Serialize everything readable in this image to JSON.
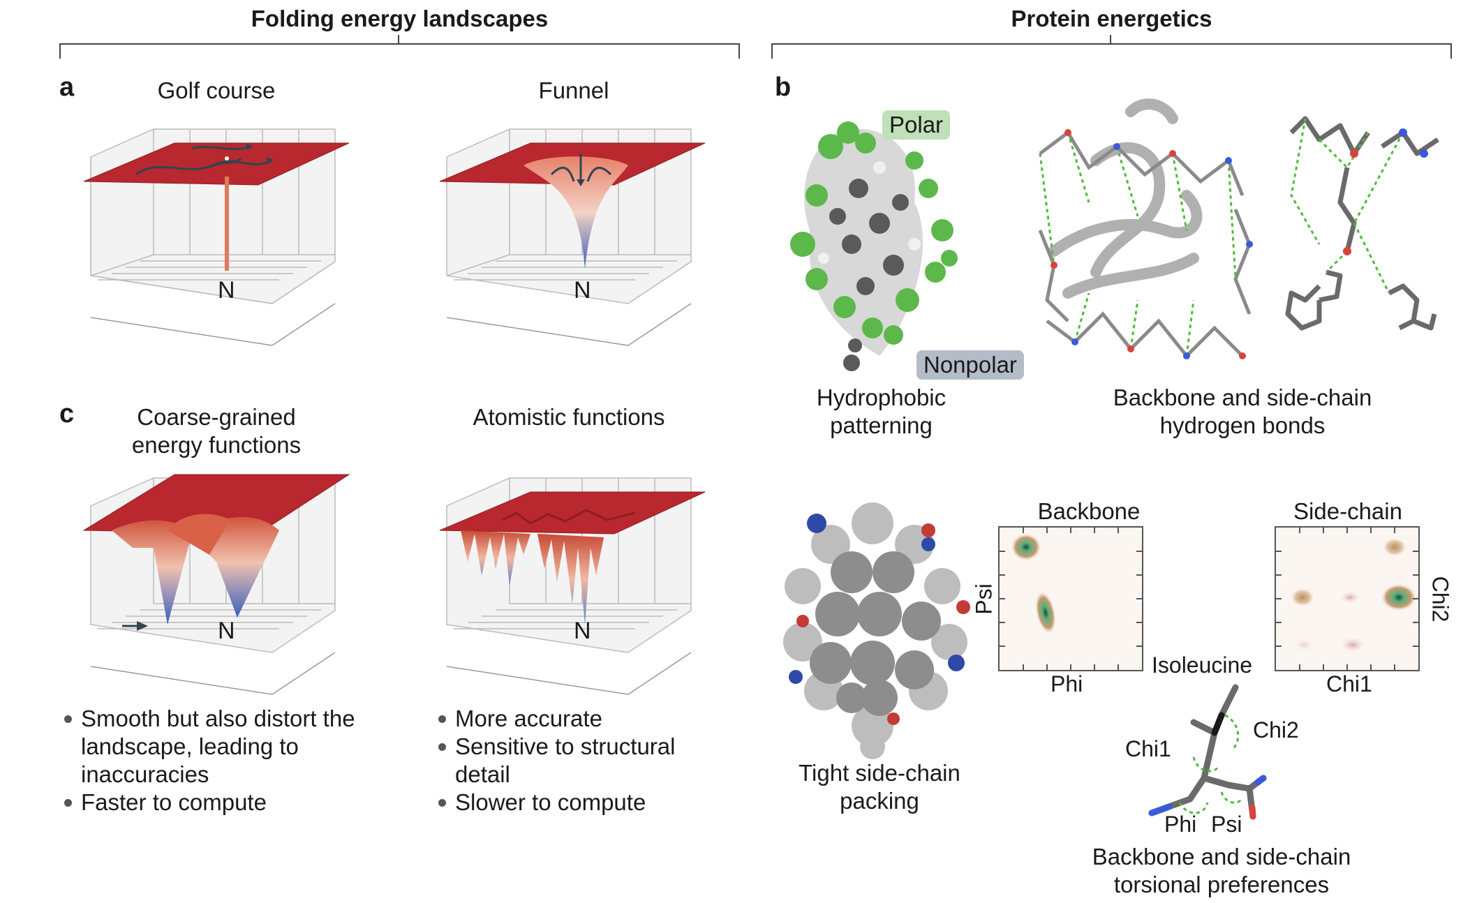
{
  "headers": {
    "left": "Folding energy landscapes",
    "right": "Protein energetics"
  },
  "panel_a": {
    "letter": "a",
    "golf_title": "Golf course",
    "funnel_title": "Funnel",
    "native_label": "N"
  },
  "panel_c": {
    "letter": "c",
    "coarse_title": "Coarse-grained energy functions",
    "atomistic_title": "Atomistic functions",
    "native_label": "N",
    "coarse_bullets": [
      "Smooth but also distort the landscape, leading to inaccuracies",
      "Faster to compute"
    ],
    "atomistic_bullets": [
      "More accurate",
      "Sensitive to structural detail",
      "Slower to compute"
    ]
  },
  "panel_b": {
    "letter": "b",
    "polar_tag": "Polar",
    "nonpolar_tag": "Nonpolar",
    "hydrophobic_caption": "Hydrophobic patterning",
    "hbond_caption": "Backbone and side-chain hydrogen bonds",
    "packing_caption": "Tight side-chain packing",
    "torsion_caption": "Backbone and side-chain torsional preferences",
    "backbone_plot": {
      "title": "Backbone",
      "xlabel": "Phi",
      "ylabel": "Psi"
    },
    "sidechain_plot": {
      "title": "Side-chain",
      "xlabel": "Chi1",
      "ylabel": "Chi2"
    },
    "isoleucine": {
      "name": "Isoleucine",
      "chi1": "Chi1",
      "chi2": "Chi2",
      "phi": "Phi",
      "psi": "Psi"
    }
  },
  "colors": {
    "surface_red": "#b8282e",
    "polar_green": "#5cb84a",
    "nonpolar_gray": "#5a5a5a",
    "polar_tag_bg": "#bfe0b8",
    "nonpolar_tag_bg": "#b4bcc8",
    "hbond_green": "#4dbb3a"
  }
}
